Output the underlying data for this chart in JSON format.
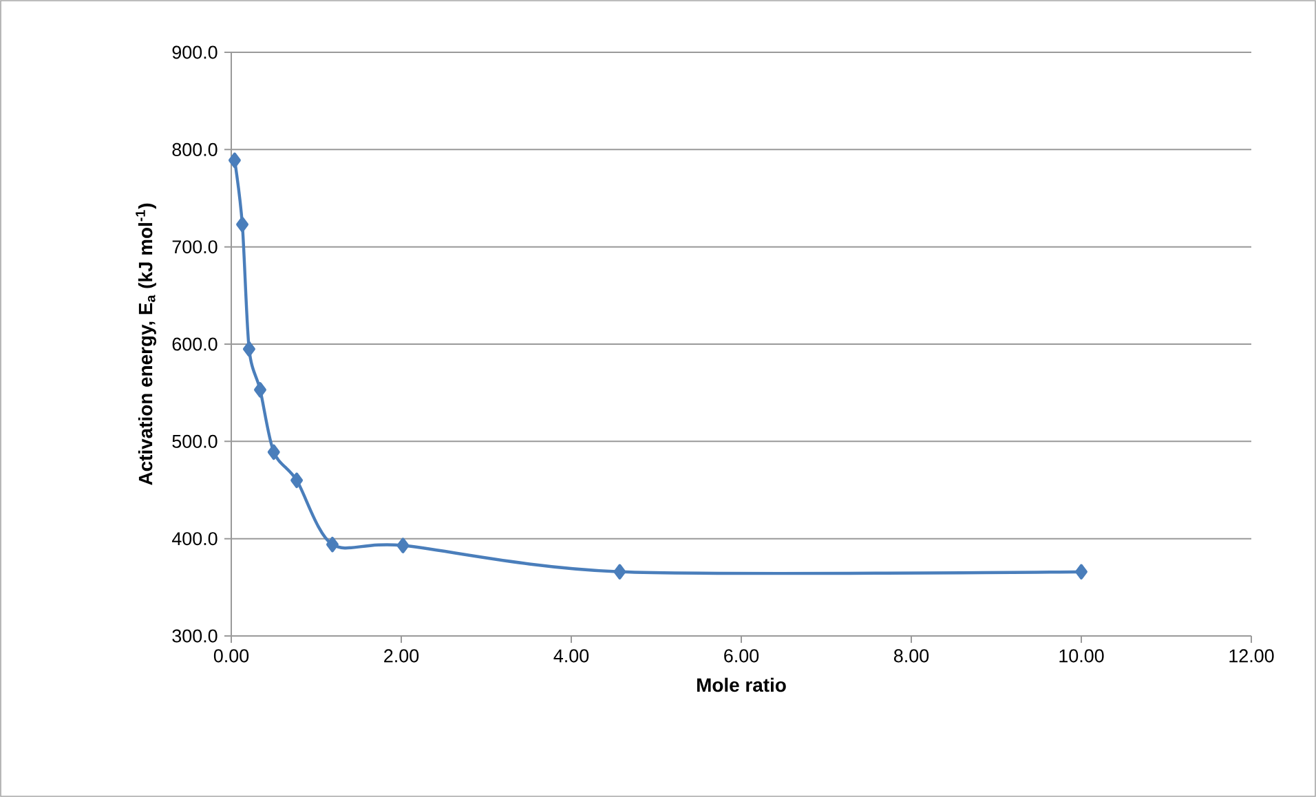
{
  "chart_data": {
    "type": "line",
    "xlabel": "Mole ratio",
    "ylabel": "Activation energy, E$_{a}$ (kJ mol$^{-1}$)",
    "x": [
      0.04,
      0.13,
      0.21,
      0.34,
      0.5,
      0.77,
      1.19,
      2.02,
      4.57,
      10.0
    ],
    "series": [
      {
        "color": "#4a7ebb",
        "values": [
          789,
          723,
          595,
          553,
          489,
          460,
          394,
          393,
          366,
          366
        ]
      }
    ],
    "xlim": [
      0,
      12
    ],
    "ylim": [
      300,
      900
    ],
    "xticks": [
      {
        "value": 0,
        "label": "0.00"
      },
      {
        "value": 2,
        "label": "2.00"
      },
      {
        "value": 4,
        "label": "4.00"
      },
      {
        "value": 6,
        "label": "6.00"
      },
      {
        "value": 8,
        "label": "8.00"
      },
      {
        "value": 10,
        "label": "10.00"
      },
      {
        "value": 12,
        "label": "12.00"
      }
    ],
    "yticks": [
      {
        "value": 300,
        "label": "300.0"
      },
      {
        "value": 400,
        "label": "400.0"
      },
      {
        "value": 500,
        "label": "500.0"
      },
      {
        "value": 600,
        "label": "600.0"
      },
      {
        "value": 700,
        "label": "700.0"
      },
      {
        "value": 800,
        "label": "800.0"
      },
      {
        "value": 900,
        "label": "900.0"
      }
    ],
    "grid": "y",
    "marker": "diamond",
    "line_style": "solid"
  }
}
